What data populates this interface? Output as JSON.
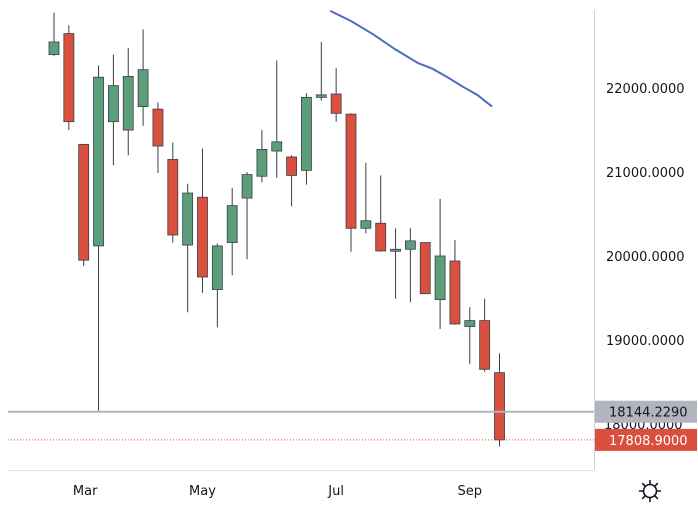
{
  "chart_data": {
    "type": "candlestick",
    "x_ticks": [
      "Mar",
      "May",
      "Jul",
      "Sep"
    ],
    "y_ticks": [
      "19000.0000",
      "20000.0000",
      "21000.0000",
      "22000.0000"
    ],
    "ylim": [
      17450,
      23050
    ],
    "grid": false,
    "colors": {
      "up": "#5d9e7a",
      "down": "#d9503f",
      "ma": "#4a6fc0",
      "h_line": "#b2b5be",
      "last_price": "#d9503f"
    },
    "candles": [
      {
        "x": 0,
        "open": 22400,
        "high": 22900,
        "low": 22380,
        "close": 22550
      },
      {
        "x": 1,
        "open": 22650,
        "high": 22750,
        "low": 21500,
        "close": 21600
      },
      {
        "x": 2,
        "open": 21330,
        "high": 21330,
        "low": 19880,
        "close": 19950
      },
      {
        "x": 3,
        "open": 20120,
        "high": 22270,
        "low": 18150,
        "close": 22130
      },
      {
        "x": 4,
        "open": 21600,
        "high": 22400,
        "low": 21080,
        "close": 22030
      },
      {
        "x": 5,
        "open": 21500,
        "high": 22480,
        "low": 21200,
        "close": 22140
      },
      {
        "x": 6,
        "open": 21780,
        "high": 22700,
        "low": 21550,
        "close": 22220
      },
      {
        "x": 7,
        "open": 21750,
        "high": 21830,
        "low": 20990,
        "close": 21310
      },
      {
        "x": 8,
        "open": 21150,
        "high": 21350,
        "low": 20160,
        "close": 20250
      },
      {
        "x": 9,
        "open": 20130,
        "high": 20860,
        "low": 19330,
        "close": 20750
      },
      {
        "x": 10,
        "open": 20700,
        "high": 21280,
        "low": 19560,
        "close": 19750
      },
      {
        "x": 11,
        "open": 19600,
        "high": 20150,
        "low": 19150,
        "close": 20120
      },
      {
        "x": 12,
        "open": 20160,
        "high": 20810,
        "low": 19770,
        "close": 20600
      },
      {
        "x": 13,
        "open": 20690,
        "high": 21000,
        "low": 19960,
        "close": 20970
      },
      {
        "x": 14,
        "open": 20950,
        "high": 21500,
        "low": 20880,
        "close": 21270
      },
      {
        "x": 15,
        "open": 21250,
        "high": 22330,
        "low": 20930,
        "close": 21360
      },
      {
        "x": 16,
        "open": 21180,
        "high": 21200,
        "low": 20590,
        "close": 20960
      },
      {
        "x": 17,
        "open": 21020,
        "high": 21940,
        "low": 20850,
        "close": 21890
      },
      {
        "x": 18,
        "open": 21890,
        "high": 22550,
        "low": 21850,
        "close": 21920
      },
      {
        "x": 19,
        "open": 21930,
        "high": 22240,
        "low": 21600,
        "close": 21700
      },
      {
        "x": 20,
        "open": 21690,
        "high": 21700,
        "low": 20050,
        "close": 20330
      },
      {
        "x": 21,
        "open": 20330,
        "high": 21110,
        "low": 20270,
        "close": 20420
      },
      {
        "x": 22,
        "open": 20390,
        "high": 20960,
        "low": 20050,
        "close": 20060
      },
      {
        "x": 23,
        "open": 20060,
        "high": 20330,
        "low": 19490,
        "close": 20080
      },
      {
        "x": 24,
        "open": 20080,
        "high": 20330,
        "low": 19450,
        "close": 20180
      },
      {
        "x": 25,
        "open": 20160,
        "high": 20160,
        "low": 19550,
        "close": 19550
      },
      {
        "x": 26,
        "open": 19480,
        "high": 20680,
        "low": 19130,
        "close": 20000
      },
      {
        "x": 27,
        "open": 19940,
        "high": 20190,
        "low": 19180,
        "close": 19190
      },
      {
        "x": 28,
        "open": 19160,
        "high": 19390,
        "low": 18710,
        "close": 19230
      },
      {
        "x": 29,
        "open": 19230,
        "high": 19490,
        "low": 18620,
        "close": 18650
      },
      {
        "x": 30,
        "open": 18610,
        "high": 18840,
        "low": 17730,
        "close": 17808.9
      }
    ],
    "moving_average": [
      {
        "x": 18.6,
        "y": 22920
      },
      {
        "x": 20,
        "y": 22800
      },
      {
        "x": 21.5,
        "y": 22640
      },
      {
        "x": 23,
        "y": 22460
      },
      {
        "x": 24.5,
        "y": 22300
      },
      {
        "x": 25.5,
        "y": 22230
      },
      {
        "x": 26.5,
        "y": 22130
      },
      {
        "x": 27.5,
        "y": 22020
      },
      {
        "x": 28.5,
        "y": 21920
      },
      {
        "x": 29.5,
        "y": 21780
      }
    ],
    "horizontal_line": {
      "price": 18144.229,
      "label": "18144.2290"
    },
    "last_price": {
      "price": 17808.9,
      "label": "17808.9000"
    },
    "hidden_tick_fragment": "18000.0000"
  },
  "icons": {
    "settings": "gear-icon"
  }
}
